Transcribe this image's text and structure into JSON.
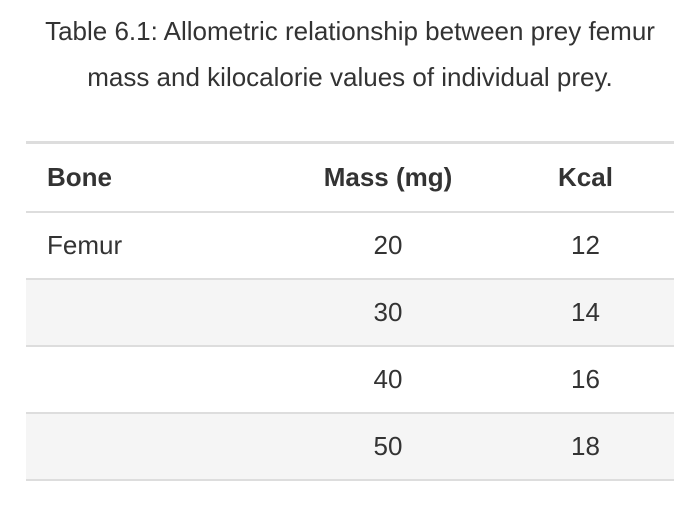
{
  "caption": "Table 6.1: Allometric relationship between prey femur mass and kilocalorie values of individual prey.",
  "table": {
    "headers": [
      "Bone",
      "Mass (mg)",
      "Kcal"
    ],
    "rows": [
      [
        "Femur",
        "20",
        "12"
      ],
      [
        "",
        "30",
        "14"
      ],
      [
        "",
        "40",
        "16"
      ],
      [
        "",
        "50",
        "18"
      ]
    ]
  }
}
